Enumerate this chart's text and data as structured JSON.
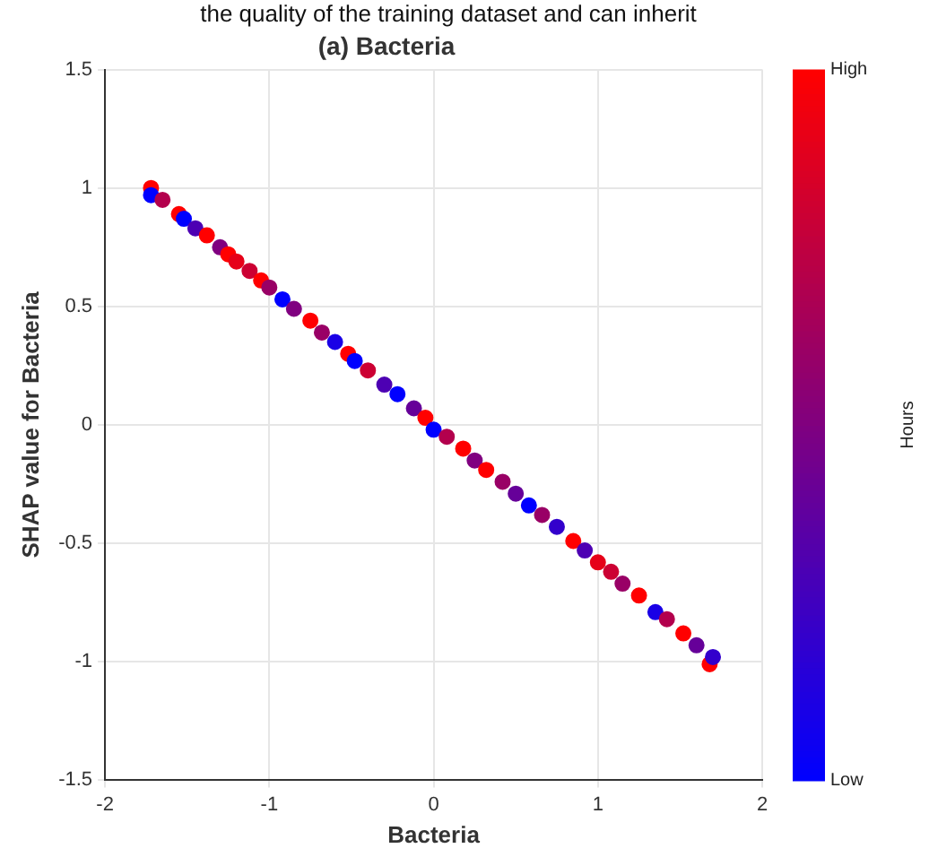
{
  "chart_data": {
    "type": "scatter",
    "title": "(a) Bacteria",
    "xlabel": "Bacteria",
    "ylabel": "SHAP value for Bacteria",
    "clabel": "Hours",
    "annotations": [
      "the quality of the training dataset and can inherit"
    ],
    "xlim": [
      -2,
      2
    ],
    "xticks": [
      -2,
      -1,
      0,
      1,
      2
    ],
    "ylim": [
      -1.5,
      1.5
    ],
    "yticks": [
      -1.5,
      -1,
      -0.5,
      0,
      0.5,
      1,
      1.5
    ],
    "grid": true,
    "marker": "circle",
    "clim": [
      0,
      1
    ],
    "cticks": [
      {
        "value": 0,
        "label": "Low"
      },
      {
        "value": 1,
        "label": "High"
      }
    ],
    "x": [
      -1.72,
      -1.72,
      -1.65,
      -1.55,
      -1.52,
      -1.45,
      -1.38,
      -1.3,
      -1.25,
      -1.2,
      -1.12,
      -1.05,
      -1.0,
      -0.92,
      -0.85,
      -0.75,
      -0.68,
      -0.6,
      -0.52,
      -0.48,
      -0.4,
      -0.3,
      -0.22,
      -0.12,
      -0.05,
      0.0,
      0.08,
      0.18,
      0.25,
      0.32,
      0.42,
      0.5,
      0.58,
      0.66,
      0.75,
      0.85,
      0.92,
      1.0,
      1.08,
      1.15,
      1.25,
      1.35,
      1.42,
      1.52,
      1.6,
      1.68,
      1.7
    ],
    "values": [
      1.0,
      0.97,
      0.95,
      0.89,
      0.87,
      0.83,
      0.8,
      0.75,
      0.72,
      0.69,
      0.65,
      0.61,
      0.58,
      0.53,
      0.49,
      0.44,
      0.39,
      0.35,
      0.3,
      0.27,
      0.23,
      0.17,
      0.13,
      0.07,
      0.03,
      -0.02,
      -0.05,
      -0.1,
      -0.15,
      -0.19,
      -0.24,
      -0.29,
      -0.34,
      -0.38,
      -0.43,
      -0.49,
      -0.53,
      -0.58,
      -0.62,
      -0.67,
      -0.72,
      -0.79,
      -0.82,
      -0.88,
      -0.93,
      -1.01,
      -0.98
    ],
    "cvalues": [
      1,
      0,
      0.7,
      1,
      0,
      0.3,
      1,
      0.5,
      1,
      0.9,
      0.8,
      1,
      0.6,
      0,
      0.5,
      1,
      0.6,
      0.1,
      1,
      0,
      0.8,
      0.3,
      0,
      0.4,
      1,
      0,
      0.7,
      1,
      0.5,
      1,
      0.6,
      0.4,
      0,
      0.6,
      0.2,
      1,
      0.3,
      0.9,
      0.8,
      0.6,
      1,
      0.1,
      0.7,
      1,
      0.4,
      1,
      0.2
    ]
  }
}
